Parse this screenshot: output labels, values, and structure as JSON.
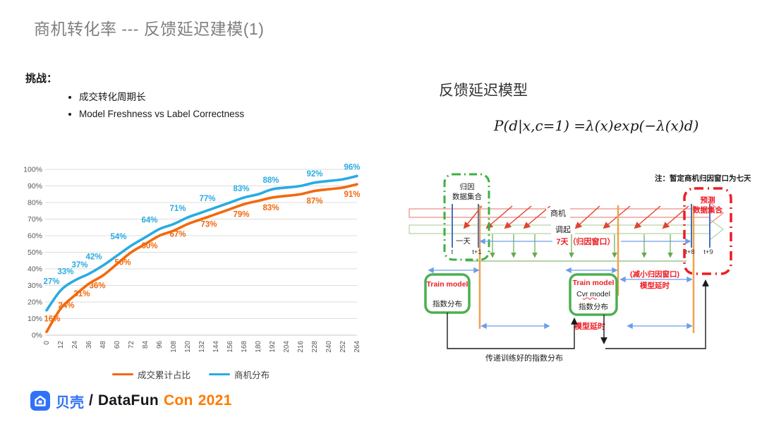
{
  "slide": {
    "title": "商机转化率 --- 反馈延迟建模(1)",
    "challenges": {
      "heading": "挑战：",
      "items": [
        "成交转化周期长",
        "Model Freshness vs Label Correctness"
      ]
    },
    "right_title": "反馈延迟模型",
    "formula": "P(d|x,c=1) =λ(x)exp(−λ(x)d)"
  },
  "chart_data": {
    "type": "line",
    "x": [
      0,
      12,
      24,
      36,
      48,
      60,
      72,
      84,
      96,
      108,
      120,
      132,
      144,
      156,
      168,
      180,
      192,
      204,
      216,
      228,
      240,
      252,
      264
    ],
    "ylim": [
      0,
      100
    ],
    "ytick_step": 10,
    "ytick_suffix": "%",
    "grid": true,
    "legend_position": "bottom",
    "series": [
      {
        "name": "成交累计占比",
        "color": "#F2690D",
        "label_side": "below",
        "values": [
          2,
          16,
          24,
          31,
          36,
          43,
          50,
          55,
          60,
          63,
          67,
          70,
          73,
          76,
          79,
          81,
          83,
          84,
          85,
          87,
          88,
          89,
          91
        ],
        "labels": [
          {
            "x": 12,
            "text": "16%",
            "dx": -12
          },
          {
            "x": 24,
            "text": "24%",
            "dx": -12
          },
          {
            "x": 36,
            "text": "31%",
            "dx": -10
          },
          {
            "x": 48,
            "text": "36%",
            "dx": -8
          },
          {
            "x": 72,
            "text": "50%",
            "dx": -12
          },
          {
            "x": 96,
            "text": "60%",
            "dx": -14
          },
          {
            "x": 120,
            "text": "67%",
            "dx": -14
          },
          {
            "x": 144,
            "text": "73%",
            "dx": -10
          },
          {
            "x": 168,
            "text": "79%",
            "dx": -4
          },
          {
            "x": 192,
            "text": "83%",
            "dx": -2
          },
          {
            "x": 228,
            "text": "87%",
            "dx": 0
          },
          {
            "x": 264,
            "text": "91%",
            "dx": -7
          }
        ]
      },
      {
        "name": "商机分布",
        "color": "#29ABE2",
        "label_side": "above",
        "values": [
          15,
          27,
          33,
          37,
          42,
          48,
          54,
          59,
          64,
          67,
          71,
          74,
          77,
          80,
          83,
          85,
          88,
          89,
          90,
          92,
          93,
          94,
          96
        ],
        "labels": [
          {
            "x": 12,
            "text": "27%",
            "dx": -13
          },
          {
            "x": 24,
            "text": "33%",
            "dx": -13
          },
          {
            "x": 36,
            "text": "37%",
            "dx": -13
          },
          {
            "x": 48,
            "text": "42%",
            "dx": -13
          },
          {
            "x": 72,
            "text": "54%",
            "dx": -18
          },
          {
            "x": 96,
            "text": "64%",
            "dx": -14
          },
          {
            "x": 120,
            "text": "71%",
            "dx": -14
          },
          {
            "x": 144,
            "text": "77%",
            "dx": -12
          },
          {
            "x": 168,
            "text": "83%",
            "dx": -4
          },
          {
            "x": 192,
            "text": "88%",
            "dx": -2
          },
          {
            "x": 228,
            "text": "92%",
            "dx": 0
          },
          {
            "x": 264,
            "text": "96%",
            "dx": -7
          }
        ]
      }
    ]
  },
  "diagram": {
    "note": "注：暂定商机归因窗口为七天",
    "attr_box": {
      "line1": "归因",
      "line2": "数据集合"
    },
    "pred_box": {
      "line1": "预测",
      "line2": "数据集合"
    },
    "band_shangji": "商机",
    "band_diaoqi": "调起",
    "one_day": "一天",
    "t_labels": [
      "t",
      "t+1",
      "t+8",
      "t+9"
    ],
    "window_label": "7天（归因窗口）",
    "shrink_label": "(减小归因窗口)",
    "model_delay_upper": "模型延时",
    "model_delay_lower": "模型延时",
    "train_box1": {
      "line1": "Train model",
      "line2": "指数分布"
    },
    "train_box2": {
      "line1": "Train model",
      "line2": "Cvr model",
      "line3": "指数分布"
    },
    "pass_label": "传递训练好的指数分布"
  },
  "footer": {
    "brand": "贝壳",
    "slash": "/",
    "event_black": "DataFun",
    "event_orange": "Con",
    "year": "2021"
  },
  "colors": {
    "title_gray": "#7f7f7f",
    "series_orange": "#F2690D",
    "series_blue": "#29ABE2",
    "diagram_red": "#ED1C24",
    "diagram_green": "#3CB043",
    "band_red": "#E57368",
    "band_green": "#A5C88C",
    "timeline_blue": "#4472C4",
    "arrow_blue": "#6D9EEB",
    "orange_line": "#F0A14F",
    "brand_blue": "#3072F6",
    "brand_orange": "#FF7A00"
  }
}
